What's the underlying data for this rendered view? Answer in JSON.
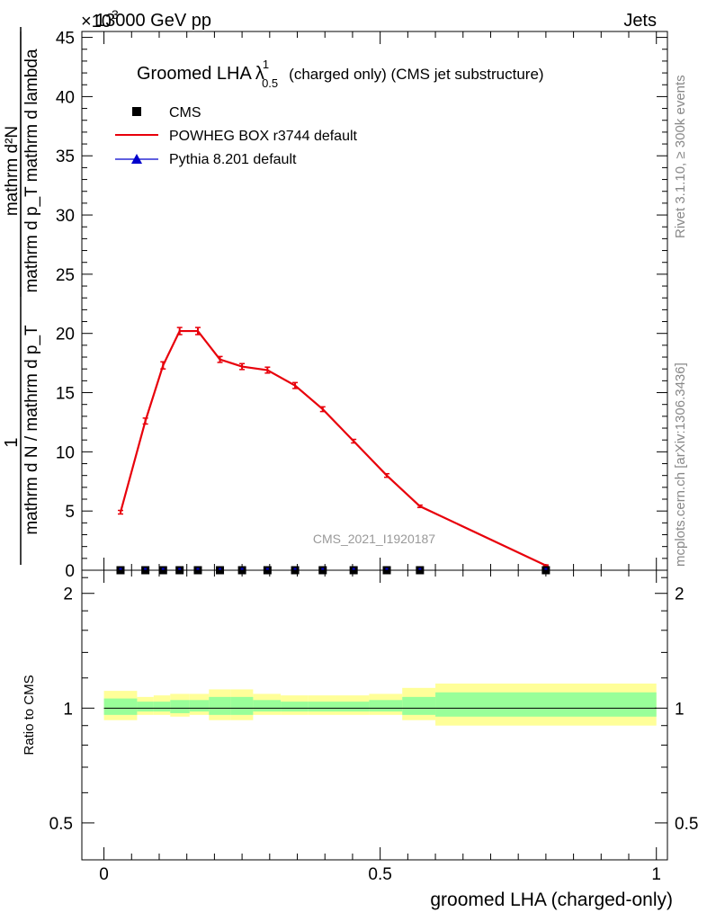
{
  "header": {
    "left": "13000 GeV pp",
    "right": "Jets",
    "multiplier_x": "×10",
    "multiplier_exp": "3"
  },
  "side_labels": {
    "rivet": "Rivet 3.1.10, ≥ 300k events",
    "mcplots": "mcplots.cern.ch [arXiv:1306.3436]"
  },
  "watermark": "CMS_2021_I1920187",
  "chart_data": [
    {
      "type": "line",
      "title": {
        "main": "Groomed LHA",
        "lambda": "λ",
        "sup": "1",
        "sub": "0.5",
        "rest": "(charged only) (CMS jet substructure)"
      },
      "ylabel": {
        "numerator": "mathrm d²N",
        "denominator": "mathrm d p_T mathrm d lambda",
        "prefix_numerator": "1",
        "prefix_denominator": "mathrm d N / mathrm d p_T"
      },
      "xlim": [
        -0.04,
        1.02
      ],
      "ylim": [
        0,
        45.5
      ],
      "y_multiplier": 1000,
      "yticks": [
        0,
        5,
        10,
        15,
        20,
        25,
        30,
        35,
        40,
        45
      ],
      "ytick_labels": [
        "0",
        "5",
        "10",
        "15",
        "20",
        "25",
        "30",
        "35",
        "40",
        "45"
      ],
      "legend": {
        "placement": "top-left",
        "entries": [
          {
            "label": "CMS",
            "marker": "square",
            "color": "#000000"
          },
          {
            "label": "POWHEG BOX r3744 default",
            "marker": "line",
            "color": "#e8000b"
          },
          {
            "label": "Pythia 8.201 default",
            "marker": "triangle",
            "color": "#0000cc"
          }
        ]
      },
      "series": [
        {
          "name": "POWHEG BOX r3744 default",
          "color": "#e8000b",
          "x": [
            0.03,
            0.075,
            0.107,
            0.137,
            0.17,
            0.21,
            0.25,
            0.296,
            0.346,
            0.396,
            0.452,
            0.512,
            0.572,
            0.8
          ],
          "y": [
            4.9,
            12.6,
            17.3,
            20.2,
            20.2,
            17.8,
            17.2,
            16.9,
            15.6,
            13.6,
            10.9,
            8.0,
            5.4,
            0.4
          ],
          "err": [
            0.15,
            0.25,
            0.3,
            0.3,
            0.3,
            0.25,
            0.25,
            0.25,
            0.25,
            0.2,
            0.15,
            0.15,
            0.1,
            0.05
          ]
        },
        {
          "name": "CMS",
          "color": "#000000",
          "x": [
            0.03,
            0.075,
            0.107,
            0.137,
            0.17,
            0.21,
            0.25,
            0.296,
            0.346,
            0.396,
            0.452,
            0.512,
            0.572,
            0.8
          ],
          "y": [
            0.001,
            0.001,
            0.001,
            0.001,
            0.001,
            0.001,
            0.001,
            0.001,
            0.001,
            0.001,
            0.001,
            0.001,
            0.001,
            0.001
          ]
        }
      ]
    },
    {
      "type": "area",
      "ylabel": "Ratio to CMS",
      "xlabel": "groomed LHA (charged-only)",
      "xlim": [
        -0.04,
        1.02
      ],
      "ylim": [
        0.4,
        2.3
      ],
      "log_y": true,
      "yticks": [
        0.5,
        1,
        2
      ],
      "ytick_labels": [
        "0.5",
        "1",
        "2"
      ],
      "xticks": [
        0,
        0.5,
        1
      ],
      "xtick_labels": [
        "0",
        "0.5",
        "1"
      ],
      "bands": {
        "edges": [
          0.0,
          0.06,
          0.09,
          0.12,
          0.155,
          0.19,
          0.23,
          0.27,
          0.32,
          0.37,
          0.42,
          0.48,
          0.54,
          0.6,
          1.0
        ],
        "yellow_lo": [
          0.93,
          0.96,
          0.96,
          0.95,
          0.96,
          0.93,
          0.93,
          0.96,
          0.96,
          0.96,
          0.96,
          0.96,
          0.93,
          0.9
        ],
        "yellow_hi": [
          1.11,
          1.07,
          1.08,
          1.09,
          1.09,
          1.12,
          1.12,
          1.09,
          1.08,
          1.08,
          1.08,
          1.09,
          1.13,
          1.16
        ],
        "green_lo": [
          0.96,
          0.98,
          0.98,
          0.97,
          0.98,
          0.96,
          0.96,
          0.98,
          0.98,
          0.98,
          0.98,
          0.98,
          0.96,
          0.95
        ],
        "green_hi": [
          1.06,
          1.04,
          1.04,
          1.05,
          1.05,
          1.07,
          1.07,
          1.05,
          1.04,
          1.04,
          1.04,
          1.05,
          1.07,
          1.1
        ]
      },
      "colors": {
        "yellow": "#ffff99",
        "green": "#99ff99"
      }
    }
  ]
}
